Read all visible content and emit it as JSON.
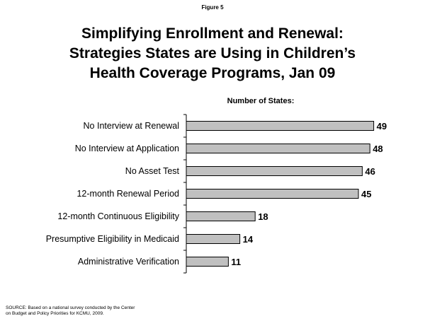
{
  "figure_label": "Figure 5",
  "title_lines": [
    "Simplifying Enrollment and Renewal:",
    "Strategies States are Using in Children’s",
    "Health Coverage Programs, Jan 09"
  ],
  "source_lines": [
    "SOURCE:  Based on a national survey conducted by the Center",
    "on Budget and Policy Priorities for KCMU, 2009."
  ],
  "chart_data": {
    "type": "bar",
    "orientation": "horizontal",
    "axis_caption": "Number of States:",
    "categories": [
      "No Interview at Renewal",
      "No Interview at Application",
      "No Asset Test",
      "12-month Renewal Period",
      "12-month Continuous Eligibility",
      "Presumptive Eligibility in Medicaid",
      "Administrative Verification"
    ],
    "values": [
      49,
      48,
      46,
      45,
      18,
      14,
      11
    ],
    "xlim": [
      0,
      50
    ],
    "bar_color": "#c0c0c0",
    "data_labels": true,
    "grid": false,
    "legend": "none"
  }
}
